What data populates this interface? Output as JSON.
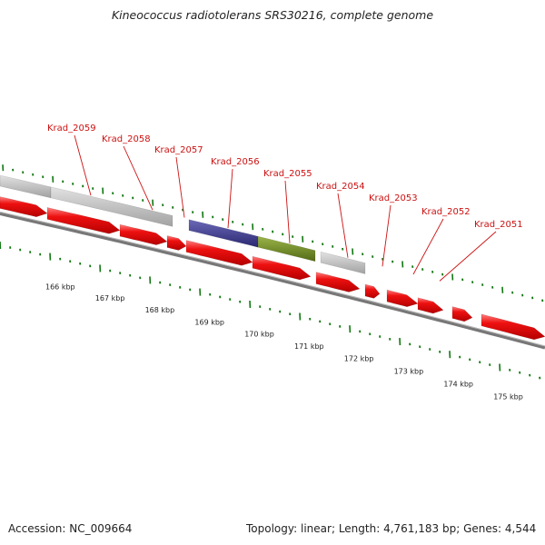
{
  "title": "Kineococcus radiotolerans SRS30216, complete genome",
  "footer": {
    "accession_label": "Accession:",
    "accession": "NC_009664",
    "topology_label": "Topology:",
    "topology": "linear",
    "length_label": "Length:",
    "length": "4,761,183 bp",
    "genes_label": "Genes:",
    "genes": "4,544"
  },
  "gene_labels": [
    "Krad_2059",
    "Krad_2058",
    "Krad_2057",
    "Krad_2056",
    "Krad_2055",
    "Krad_2054",
    "Krad_2053",
    "Krad_2052",
    "Krad_2051"
  ],
  "scale_labels": [
    "166 kbp",
    "167 kbp",
    "168 kbp",
    "169 kbp",
    "170 kbp",
    "171 kbp",
    "172 kbp",
    "173 kbp",
    "174 kbp",
    "175 kbp"
  ],
  "colors": {
    "cds": "#ee1111",
    "cds_highlight": "#ff7777",
    "grey_feature": "#b8b8b8",
    "blue_feature": "#3d3a8c",
    "green_feature": "#6e8a22",
    "backbone": "#777777",
    "tick": "#117711",
    "label": "#cc1111"
  }
}
